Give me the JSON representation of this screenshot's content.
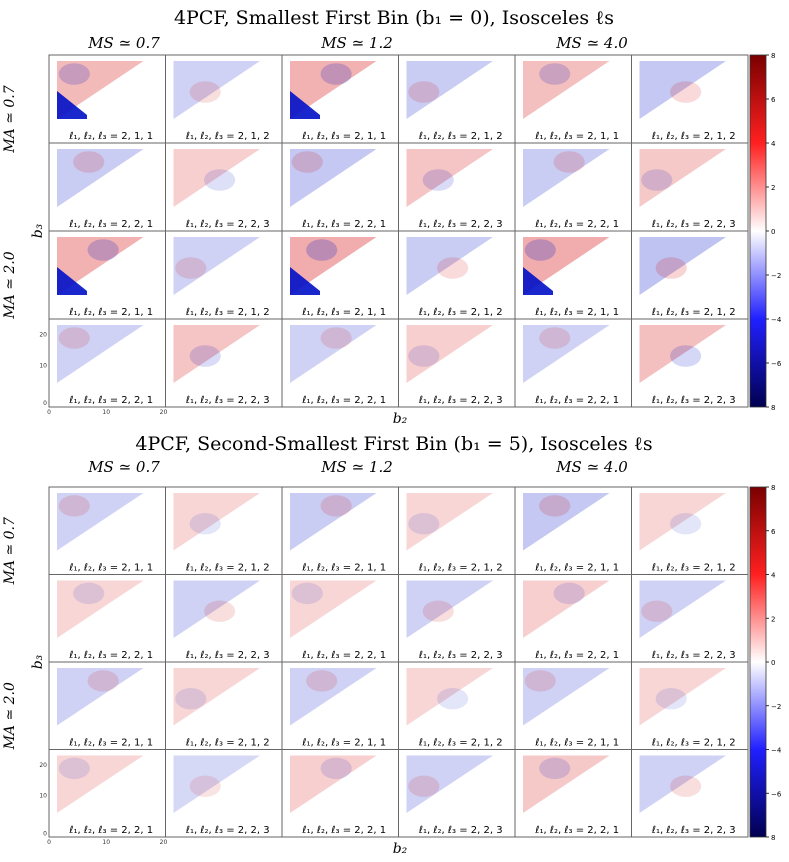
{
  "chart_data": {
    "type": "heatmap",
    "figures": [
      {
        "title": "4PCF, Smallest First Bin (b₁ = 0), Isosceles ℓs",
        "col_labels": [
          "M_S ≃ 0.7",
          "M_S ≃ 1.2",
          "M_S ≃ 4.0"
        ],
        "row_labels": [
          "M_A ≃ 0.7",
          "M_A ≃ 2.0"
        ],
        "xlabel": "b₂",
        "ylabel": "b₃",
        "colorbar_ticks": [
          "8",
          "6",
          "4",
          "2",
          "0",
          "−2",
          "−4",
          "−6",
          "8"
        ],
        "panel_labels": [
          [
            "ℓ₁, ℓ₂, ℓ₃ = 2, 1, 1",
            "ℓ₁, ℓ₂, ℓ₃ = 2, 1, 2",
            "ℓ₁, ℓ₂, ℓ₃ = 2, 1, 1",
            "ℓ₁, ℓ₂, ℓ₃ = 2, 1, 2",
            "ℓ₁, ℓ₂, ℓ₃ = 2, 1, 1",
            "ℓ₁, ℓ₂, ℓ₃ = 2, 1, 2"
          ],
          [
            "ℓ₁, ℓ₂, ℓ₃ = 2, 2, 1",
            "ℓ₁, ℓ₂, ℓ₃ = 2, 2, 3",
            "ℓ₁, ℓ₂, ℓ₃ = 2, 2, 1",
            "ℓ₁, ℓ₂, ℓ₃ = 2, 2, 3",
            "ℓ₁, ℓ₂, ℓ₃ = 2, 2, 1",
            "ℓ₁, ℓ₂, ℓ₃ = 2, 2, 3"
          ],
          [
            "ℓ₁, ℓ₂, ℓ₃ = 2, 1, 1",
            "ℓ₁, ℓ₂, ℓ₃ = 2, 1, 2",
            "ℓ₁, ℓ₂, ℓ₃ = 2, 1, 1",
            "ℓ₁, ℓ₂, ℓ₃ = 2, 1, 2",
            "ℓ₁, ℓ₂, ℓ₃ = 2, 1, 1",
            "ℓ₁, ℓ₂, ℓ₃ = 2, 1, 2"
          ],
          [
            "ℓ₁, ℓ₂, ℓ₃ = 2, 2, 1",
            "ℓ₁, ℓ₂, ℓ₃ = 2, 2, 3",
            "ℓ₁, ℓ₂, ℓ₃ = 2, 2, 1",
            "ℓ₁, ℓ₂, ℓ₃ = 2, 2, 3",
            "ℓ₁, ℓ₂, ℓ₃ = 2, 2, 1",
            "ℓ₁, ℓ₂, ℓ₃ = 2, 2, 3"
          ]
        ],
        "y_ticks": [
          "20",
          "10",
          "0"
        ],
        "x_ticks": [
          "0",
          "10",
          "20"
        ],
        "intensity": [
          [
            0.7,
            0.3,
            0.8,
            0.4,
            0.6,
            0.5
          ],
          [
            0.4,
            0.3,
            0.5,
            0.5,
            0.4,
            0.4
          ],
          [
            0.8,
            0.3,
            0.9,
            0.4,
            0.9,
            0.6
          ],
          [
            0.3,
            0.5,
            0.3,
            0.3,
            0.3,
            0.6
          ]
        ]
      },
      {
        "title": "4PCF, Second-Smallest First Bin (b₁ = 5), Isosceles ℓs",
        "col_labels": [
          "M_S ≃ 0.7",
          "M_S ≃ 1.2",
          "M_S ≃ 4.0"
        ],
        "row_labels": [
          "M_A ≃ 0.7",
          "M_A ≃ 2.0"
        ],
        "xlabel": "b₂",
        "ylabel": "b₃",
        "colorbar_ticks": [
          "8",
          "6",
          "4",
          "2",
          "0",
          "−2",
          "−4",
          "−6",
          "8"
        ],
        "panel_labels": [
          [
            "ℓ₁, ℓ₂, ℓ₃ = 2, 1, 1",
            "ℓ₁, ℓ₂, ℓ₃ = 2, 1, 2",
            "ℓ₁, ℓ₂, ℓ₃ = 2, 1, 1",
            "ℓ₁, ℓ₂, ℓ₃ = 2, 1, 2",
            "ℓ₁, ℓ₂, ℓ₃ = 2, 1, 1",
            "ℓ₁, ℓ₂, ℓ₃ = 2, 1, 2"
          ],
          [
            "ℓ₁, ℓ₂, ℓ₃ = 2, 2, 1",
            "ℓ₁, ℓ₂, ℓ₃ = 2, 2, 3",
            "ℓ₁, ℓ₂, ℓ₃ = 2, 2, 1",
            "ℓ₁, ℓ₂, ℓ₃ = 2, 2, 3",
            "ℓ₁, ℓ₂, ℓ₃ = 2, 2, 1",
            "ℓ₁, ℓ₂, ℓ₃ = 2, 2, 3"
          ],
          [
            "ℓ₁, ℓ₂, ℓ₃ = 2, 1, 1",
            "ℓ₁, ℓ₂, ℓ₃ = 2, 1, 2",
            "ℓ₁, ℓ₂, ℓ₃ = 2, 1, 1",
            "ℓ₁, ℓ₂, ℓ₃ = 2, 1, 2",
            "ℓ₁, ℓ₂, ℓ₃ = 2, 1, 1",
            "ℓ₁, ℓ₂, ℓ₃ = 2, 1, 2"
          ],
          [
            "ℓ₁, ℓ₂, ℓ₃ = 2, 2, 1",
            "ℓ₁, ℓ₂, ℓ₃ = 2, 2, 3",
            "ℓ₁, ℓ₂, ℓ₃ = 2, 2, 1",
            "ℓ₁, ℓ₂, ℓ₃ = 2, 2, 3",
            "ℓ₁, ℓ₂, ℓ₃ = 2, 2, 1",
            "ℓ₁, ℓ₂, ℓ₃ = 2, 2, 3"
          ]
        ],
        "y_ticks": [
          "20",
          "10",
          "0"
        ],
        "x_ticks": [
          "0",
          "10",
          "20"
        ],
        "intensity": [
          [
            0.3,
            0.2,
            0.4,
            0.2,
            0.5,
            0.2
          ],
          [
            0.2,
            0.3,
            0.2,
            0.3,
            0.3,
            0.3
          ],
          [
            0.3,
            0.2,
            0.3,
            0.2,
            0.3,
            0.2
          ],
          [
            0.2,
            0.2,
            0.3,
            0.3,
            0.4,
            0.3
          ]
        ]
      }
    ],
    "colors": {
      "positive": "#d40000",
      "negative": "#0010c8",
      "zero": "#ffffff",
      "cb_top": "#7a0000",
      "cb_bottom": "#000050"
    }
  }
}
